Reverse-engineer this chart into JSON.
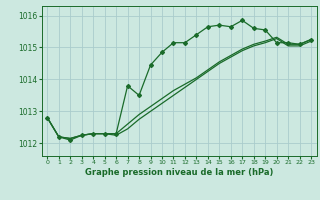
{
  "xlabel": "Graphe pression niveau de la mer (hPa)",
  "xlim": [
    -0.5,
    23.5
  ],
  "ylim": [
    1011.6,
    1016.3
  ],
  "yticks": [
    1012,
    1013,
    1014,
    1015,
    1016
  ],
  "xticks": [
    0,
    1,
    2,
    3,
    4,
    5,
    6,
    7,
    8,
    9,
    10,
    11,
    12,
    13,
    14,
    15,
    16,
    17,
    18,
    19,
    20,
    21,
    22,
    23
  ],
  "background_color": "#cce8e0",
  "grid_color": "#aacccc",
  "line_color": "#1a6b2a",
  "series1_x": [
    0,
    1,
    2,
    3,
    4,
    5,
    6,
    7,
    8,
    9,
    10,
    11,
    12,
    13,
    14,
    15,
    16,
    17,
    18,
    19,
    20,
    21,
    22,
    23
  ],
  "series1_y": [
    1012.8,
    1012.2,
    1012.1,
    1012.25,
    1012.3,
    1012.3,
    1012.3,
    1013.8,
    1013.5,
    1014.45,
    1014.85,
    1015.15,
    1015.15,
    1015.4,
    1015.65,
    1015.7,
    1015.65,
    1015.85,
    1015.6,
    1015.55,
    1015.15,
    1015.15,
    1015.1,
    1015.25
  ],
  "series2_x": [
    0,
    1,
    2,
    3,
    4,
    5,
    6,
    7,
    8,
    9,
    10,
    11,
    12,
    13,
    14,
    15,
    16,
    17,
    18,
    19,
    20,
    21,
    22,
    23
  ],
  "series2_y": [
    1012.8,
    1012.2,
    1012.15,
    1012.25,
    1012.3,
    1012.3,
    1012.3,
    1012.6,
    1012.9,
    1013.15,
    1013.4,
    1013.65,
    1013.85,
    1014.05,
    1014.3,
    1014.55,
    1014.75,
    1014.95,
    1015.1,
    1015.2,
    1015.32,
    1015.1,
    1015.1,
    1015.25
  ],
  "series3_x": [
    0,
    1,
    2,
    3,
    4,
    5,
    6,
    7,
    8,
    9,
    10,
    11,
    12,
    13,
    14,
    15,
    16,
    17,
    18,
    19,
    20,
    21,
    22,
    23
  ],
  "series3_y": [
    1012.8,
    1012.2,
    1012.15,
    1012.25,
    1012.3,
    1012.3,
    1012.25,
    1012.45,
    1012.75,
    1013.0,
    1013.25,
    1013.5,
    1013.75,
    1014.0,
    1014.25,
    1014.5,
    1014.7,
    1014.9,
    1015.05,
    1015.15,
    1015.28,
    1015.05,
    1015.05,
    1015.2
  ]
}
